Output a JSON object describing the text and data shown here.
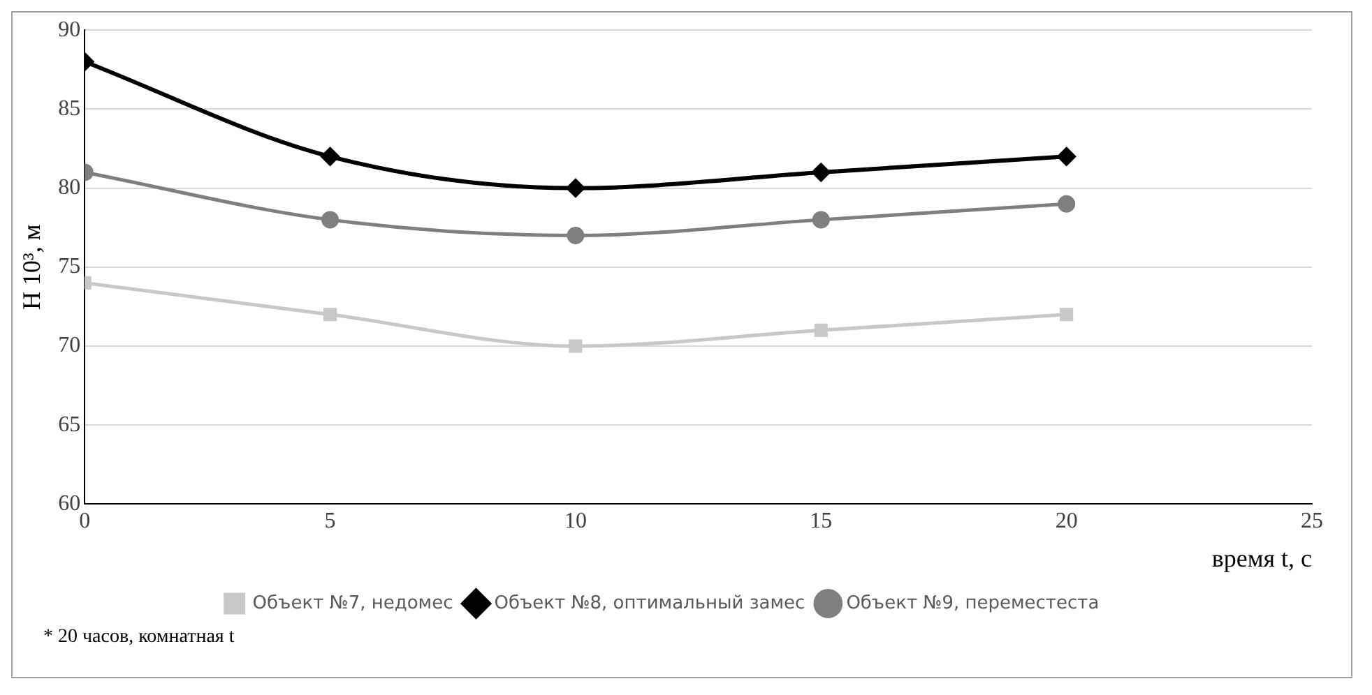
{
  "chart_data": {
    "type": "line",
    "xlabel": "время t, с",
    "ylabel": "H 10³, м",
    "x": [
      0,
      5,
      10,
      15,
      20
    ],
    "series": [
      {
        "name": "Объект №7, недомес",
        "color": "#c8c8c8",
        "marker": "square",
        "values": [
          74,
          72,
          70,
          71,
          72
        ]
      },
      {
        "name": "Объект №8, оптимальный замес",
        "color": "#000000",
        "marker": "diamond",
        "values": [
          88,
          82,
          80,
          81,
          82
        ]
      },
      {
        "name": "Объект №9, переместеста",
        "color": "#7f7f7f",
        "marker": "circle",
        "values": [
          81,
          78,
          77,
          78,
          79
        ]
      }
    ],
    "xlim": [
      0,
      25
    ],
    "xticks": [
      0,
      5,
      10,
      15,
      20,
      25
    ],
    "ylim": [
      60,
      90
    ],
    "yticks": [
      60,
      65,
      70,
      75,
      80,
      85,
      90
    ],
    "grid": "y",
    "legend": "bottom",
    "annotations": [
      "* 20 часов, комнатная  t"
    ]
  }
}
